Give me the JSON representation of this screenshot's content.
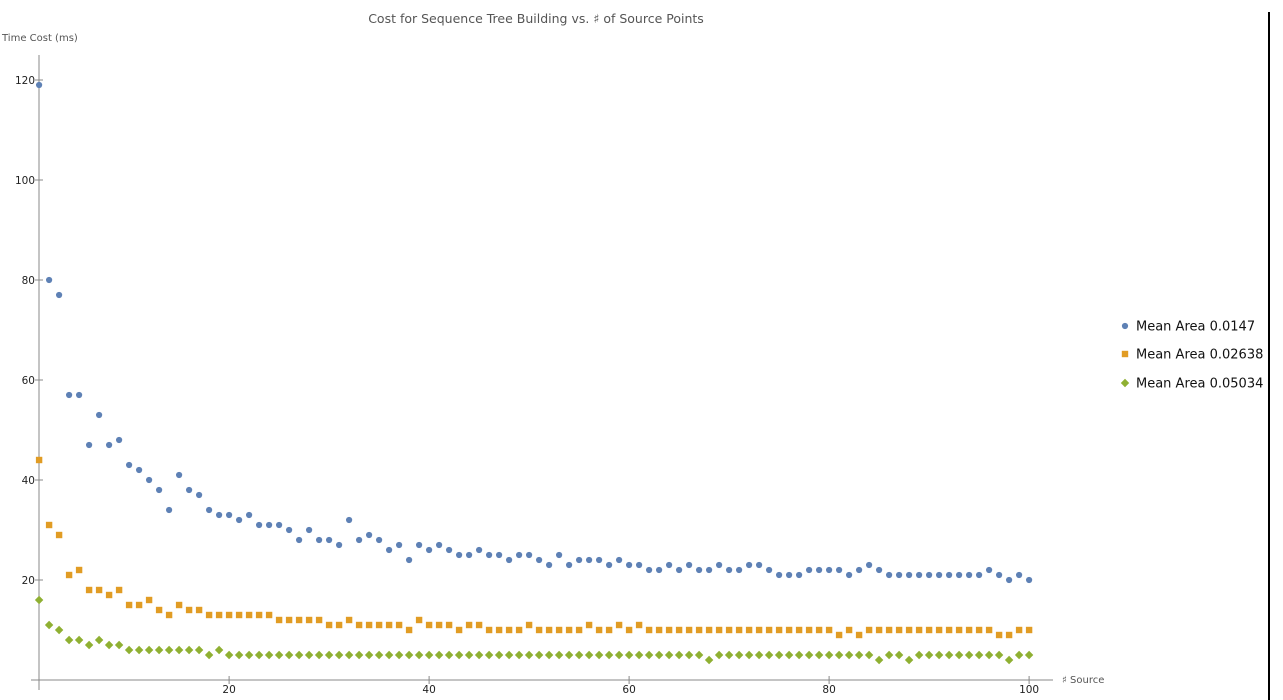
{
  "chart_data": {
    "type": "scatter",
    "title": "Cost for Sequence Tree Building vs. ♯ of Source Points",
    "xlabel": "♯ Source",
    "ylabel": "Time Cost (ms)",
    "xlim": [
      0,
      101
    ],
    "ylim": [
      0,
      125
    ],
    "x_ticks": [
      20,
      40,
      60,
      80,
      100
    ],
    "y_ticks": [
      20,
      40,
      60,
      80,
      100,
      120
    ],
    "grid": false,
    "legend_position": "right",
    "series": [
      {
        "name": "Mean Area 0.0147",
        "color": "#5e81b5",
        "marker": "circle",
        "x": [
          1,
          2,
          3,
          4,
          5,
          6,
          7,
          8,
          9,
          10,
          11,
          12,
          13,
          14,
          15,
          16,
          17,
          18,
          19,
          20,
          21,
          22,
          23,
          24,
          25,
          26,
          27,
          28,
          29,
          30,
          31,
          32,
          33,
          34,
          35,
          36,
          37,
          38,
          39,
          40,
          41,
          42,
          43,
          44,
          45,
          46,
          47,
          48,
          49,
          50,
          51,
          52,
          53,
          54,
          55,
          56,
          57,
          58,
          59,
          60,
          61,
          62,
          63,
          64,
          65,
          66,
          67,
          68,
          69,
          70,
          71,
          72,
          73,
          74,
          75,
          76,
          77,
          78,
          79,
          80,
          81,
          82,
          83,
          84,
          85,
          86,
          87,
          88,
          89,
          90,
          91,
          92,
          93,
          94,
          95,
          96,
          97,
          98,
          99,
          100
        ],
        "values": [
          119,
          80,
          77,
          57,
          57,
          47,
          53,
          47,
          48,
          43,
          42,
          40,
          38,
          34,
          41,
          38,
          37,
          34,
          33,
          33,
          32,
          33,
          31,
          31,
          31,
          30,
          28,
          30,
          28,
          28,
          27,
          32,
          28,
          29,
          28,
          26,
          27,
          24,
          27,
          26,
          27,
          26,
          25,
          25,
          26,
          25,
          25,
          24,
          25,
          25,
          24,
          23,
          25,
          23,
          24,
          24,
          24,
          23,
          24,
          23,
          23,
          22,
          22,
          23,
          22,
          23,
          22,
          22,
          23,
          22,
          22,
          23,
          23,
          22,
          21,
          21,
          21,
          22,
          22,
          22,
          22,
          21,
          22,
          23,
          22,
          21,
          21,
          21,
          21,
          21,
          21,
          21,
          21,
          21,
          21,
          22,
          21,
          20,
          21,
          20
        ]
      },
      {
        "name": "Mean Area 0.02638",
        "color": "#e19c24",
        "marker": "square",
        "x": [
          1,
          2,
          3,
          4,
          5,
          6,
          7,
          8,
          9,
          10,
          11,
          12,
          13,
          14,
          15,
          16,
          17,
          18,
          19,
          20,
          21,
          22,
          23,
          24,
          25,
          26,
          27,
          28,
          29,
          30,
          31,
          32,
          33,
          34,
          35,
          36,
          37,
          38,
          39,
          40,
          41,
          42,
          43,
          44,
          45,
          46,
          47,
          48,
          49,
          50,
          51,
          52,
          53,
          54,
          55,
          56,
          57,
          58,
          59,
          60,
          61,
          62,
          63,
          64,
          65,
          66,
          67,
          68,
          69,
          70,
          71,
          72,
          73,
          74,
          75,
          76,
          77,
          78,
          79,
          80,
          81,
          82,
          83,
          84,
          85,
          86,
          87,
          88,
          89,
          90,
          91,
          92,
          93,
          94,
          95,
          96,
          97,
          98,
          99,
          100
        ],
        "values": [
          44,
          31,
          29,
          21,
          22,
          18,
          18,
          17,
          18,
          15,
          15,
          16,
          14,
          13,
          15,
          14,
          14,
          13,
          13,
          13,
          13,
          13,
          13,
          13,
          12,
          12,
          12,
          12,
          12,
          11,
          11,
          12,
          11,
          11,
          11,
          11,
          11,
          10,
          12,
          11,
          11,
          11,
          10,
          11,
          11,
          10,
          10,
          10,
          10,
          11,
          10,
          10,
          10,
          10,
          10,
          11,
          10,
          10,
          11,
          10,
          11,
          10,
          10,
          10,
          10,
          10,
          10,
          10,
          10,
          10,
          10,
          10,
          10,
          10,
          10,
          10,
          10,
          10,
          10,
          10,
          9,
          10,
          9,
          10,
          10,
          10,
          10,
          10,
          10,
          10,
          10,
          10,
          10,
          10,
          10,
          10,
          9,
          9,
          10,
          10
        ]
      },
      {
        "name": "Mean Area 0.05034",
        "color": "#8fb032",
        "marker": "diamond",
        "x": [
          1,
          2,
          3,
          4,
          5,
          6,
          7,
          8,
          9,
          10,
          11,
          12,
          13,
          14,
          15,
          16,
          17,
          18,
          19,
          20,
          21,
          22,
          23,
          24,
          25,
          26,
          27,
          28,
          29,
          30,
          31,
          32,
          33,
          34,
          35,
          36,
          37,
          38,
          39,
          40,
          41,
          42,
          43,
          44,
          45,
          46,
          47,
          48,
          49,
          50,
          51,
          52,
          53,
          54,
          55,
          56,
          57,
          58,
          59,
          60,
          61,
          62,
          63,
          64,
          65,
          66,
          67,
          68,
          69,
          70,
          71,
          72,
          73,
          74,
          75,
          76,
          77,
          78,
          79,
          80,
          81,
          82,
          83,
          84,
          85,
          86,
          87,
          88,
          89,
          90,
          91,
          92,
          93,
          94,
          95,
          96,
          97,
          98,
          99,
          100
        ],
        "values": [
          16,
          11,
          10,
          8,
          8,
          7,
          8,
          7,
          7,
          6,
          6,
          6,
          6,
          6,
          6,
          6,
          6,
          5,
          6,
          5,
          5,
          5,
          5,
          5,
          5,
          5,
          5,
          5,
          5,
          5,
          5,
          5,
          5,
          5,
          5,
          5,
          5,
          5,
          5,
          5,
          5,
          5,
          5,
          5,
          5,
          5,
          5,
          5,
          5,
          5,
          5,
          5,
          5,
          5,
          5,
          5,
          5,
          5,
          5,
          5,
          5,
          5,
          5,
          5,
          5,
          5,
          5,
          4,
          5,
          5,
          5,
          5,
          5,
          5,
          5,
          5,
          5,
          5,
          5,
          5,
          5,
          5,
          5,
          5,
          4,
          5,
          5,
          4,
          5,
          5,
          5,
          5,
          5,
          5,
          5,
          5,
          5,
          4,
          5,
          5
        ]
      }
    ]
  }
}
